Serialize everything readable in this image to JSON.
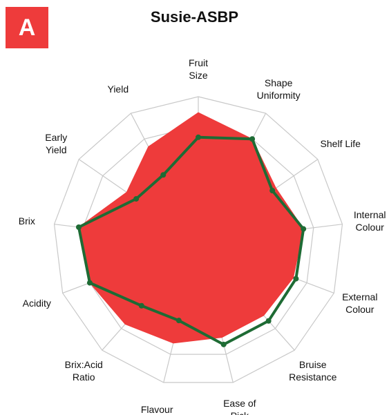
{
  "chart_data": {
    "type": "radar",
    "title": "Susie-ASBP",
    "panel_label": "A",
    "categories": [
      "Fruit\nSize",
      "Shape\nUniformity",
      "Shelf Life",
      "Internal\nColour",
      "External\nColour",
      "Bruise\nResistance",
      "Ease of\nPick",
      "Flavour",
      "Brix:Acid\nRatio",
      "Acidity",
      "Brix",
      "Early\nYield",
      "Yield"
    ],
    "rlim": [
      0,
      5
    ],
    "rticks": [
      1,
      2,
      3,
      4,
      5
    ],
    "grid": true,
    "series": [
      {
        "color": "#ee3b3b",
        "fill": true,
        "values": [
          4.45,
          4.0,
          3.25,
          3.65,
          3.5,
          3.4,
          3.4,
          3.6,
          3.8,
          4.0,
          4.15,
          3.0,
          3.7
        ]
      },
      {
        "color": "#1e6b34",
        "fill": false,
        "values": [
          3.6,
          4.0,
          3.1,
          3.65,
          3.6,
          3.65,
          3.65,
          2.8,
          2.95,
          4.0,
          4.15,
          2.6,
          2.6
        ]
      }
    ]
  }
}
